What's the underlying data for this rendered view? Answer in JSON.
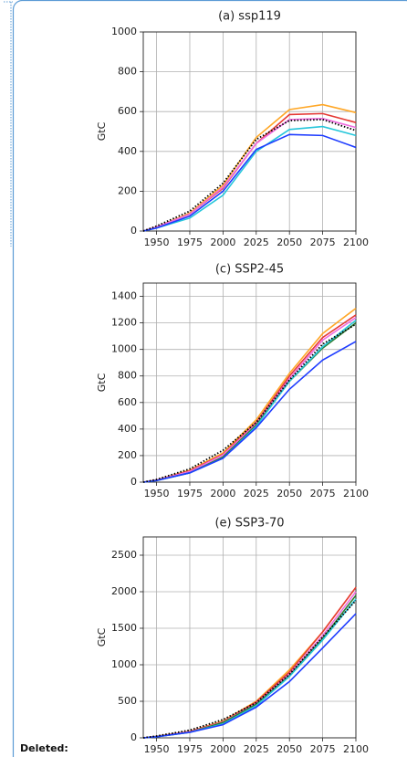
{
  "chart_data": [
    {
      "type": "line",
      "title": "(a) ssp119",
      "y_label": "GtC",
      "x": [
        1940,
        1950,
        1975,
        2000,
        2025,
        2050,
        2075,
        2100
      ],
      "xlim": [
        1940,
        2100
      ],
      "xticks": [
        1950,
        1975,
        2000,
        2025,
        2050,
        2075,
        2100
      ],
      "ylim": [
        0,
        1000
      ],
      "yticks": [
        0,
        200,
        400,
        600,
        800,
        1000
      ],
      "grid": true,
      "series": [
        {
          "color": "#ffa726",
          "values": [
            0,
            20,
            90,
            230,
            470,
            610,
            635,
            595
          ]
        },
        {
          "color": "#e53935",
          "values": [
            0,
            20,
            85,
            215,
            440,
            585,
            590,
            545
          ]
        },
        {
          "color": "#f06ce0",
          "values": [
            0,
            20,
            85,
            220,
            440,
            560,
            565,
            520
          ]
        },
        {
          "color": "#26c6da",
          "values": [
            0,
            15,
            65,
            180,
            400,
            510,
            525,
            480
          ]
        },
        {
          "color": "#1e3cff",
          "values": [
            0,
            15,
            75,
            200,
            410,
            485,
            480,
            420
          ]
        },
        {
          "color": "#000000",
          "style": "dotted",
          "values": [
            0,
            25,
            100,
            240,
            460,
            555,
            560,
            505
          ]
        }
      ]
    },
    {
      "type": "line",
      "title": "(c) SSP2-45",
      "y_label": "GtC",
      "x": [
        1940,
        1950,
        1975,
        2000,
        2025,
        2050,
        2075,
        2100
      ],
      "xlim": [
        1940,
        2100
      ],
      "xticks": [
        1950,
        1975,
        2000,
        2025,
        2050,
        2075,
        2100
      ],
      "ylim": [
        0,
        1500
      ],
      "yticks": [
        0,
        200,
        400,
        600,
        800,
        1000,
        1200,
        1400
      ],
      "grid": true,
      "series": [
        {
          "color": "#ffa726",
          "values": [
            0,
            15,
            90,
            220,
            470,
            820,
            1120,
            1310
          ]
        },
        {
          "color": "#e53935",
          "values": [
            0,
            15,
            85,
            210,
            450,
            800,
            1090,
            1260
          ]
        },
        {
          "color": "#f06ce0",
          "values": [
            0,
            15,
            80,
            205,
            440,
            780,
            1070,
            1240
          ]
        },
        {
          "color": "#2e7d32",
          "values": [
            0,
            12,
            70,
            190,
            430,
            760,
            1010,
            1200
          ]
        },
        {
          "color": "#26c6da",
          "values": [
            0,
            12,
            70,
            180,
            420,
            760,
            1020,
            1220
          ]
        },
        {
          "color": "#1e3cff",
          "values": [
            0,
            12,
            70,
            180,
            410,
            700,
            920,
            1060
          ]
        },
        {
          "color": "#000000",
          "style": "dotted",
          "values": [
            0,
            20,
            100,
            240,
            450,
            770,
            1040,
            1190
          ]
        }
      ]
    },
    {
      "type": "line",
      "title": "(e) SSP3-70",
      "y_label": "GtC",
      "x": [
        1940,
        1950,
        1975,
        2000,
        2025,
        2050,
        2075,
        2100
      ],
      "xlim": [
        1940,
        2100
      ],
      "xticks": [
        1950,
        1975,
        2000,
        2025,
        2050,
        2075,
        2100
      ],
      "ylim": [
        0,
        2750
      ],
      "yticks": [
        0,
        500,
        1000,
        1500,
        2000,
        2500
      ],
      "grid": true,
      "series": [
        {
          "color": "#ffa726",
          "values": [
            0,
            20,
            90,
            230,
            500,
            930,
            1450,
            2060
          ]
        },
        {
          "color": "#e53935",
          "values": [
            0,
            18,
            85,
            220,
            490,
            900,
            1450,
            2060
          ]
        },
        {
          "color": "#f06ce0",
          "values": [
            0,
            18,
            80,
            215,
            470,
            870,
            1400,
            2000
          ]
        },
        {
          "color": "#2e7d32",
          "values": [
            0,
            15,
            75,
            210,
            460,
            850,
            1360,
            1950
          ]
        },
        {
          "color": "#26c6da",
          "values": [
            0,
            15,
            75,
            190,
            440,
            840,
            1340,
            1900
          ]
        },
        {
          "color": "#1e3cff",
          "values": [
            0,
            15,
            75,
            180,
            420,
            770,
            1230,
            1700
          ]
        },
        {
          "color": "#000000",
          "style": "dotted",
          "values": [
            0,
            25,
            105,
            250,
            480,
            870,
            1380,
            1880
          ]
        }
      ]
    }
  ],
  "margin_label": "Deleted:"
}
